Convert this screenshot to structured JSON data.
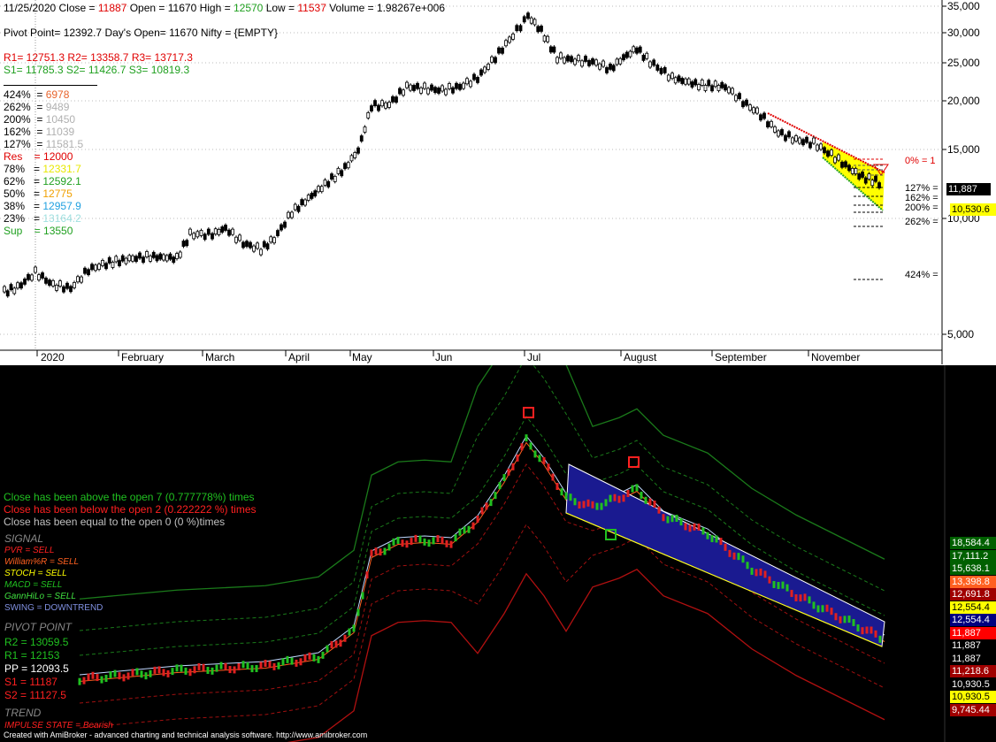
{
  "header": {
    "date": "11/25/2020",
    "close_label": "Close =",
    "close_value": "11887",
    "open_label": "Open =",
    "open_value": "11670",
    "high_label": "High =",
    "high_value": "12570",
    "low_label": "Low =",
    "low_value": "11537",
    "volume_text": "Volume = 1.98267e+006",
    "pivot_text": "Pivot Point= 12392.7",
    "days_open_text": "Day's Open= 11670",
    "nifty_text": "Nifty = {EMPTY}",
    "r1": "R1= 12751.3",
    "r2": "R2= 13358.7",
    "r3": "R3= 13717.3",
    "s1": "S1= 11785.3",
    "s2": "S2= 11426.7",
    "s3": "S3= 10819.3"
  },
  "fib_rows": [
    {
      "label": "424%  = ",
      "value": "6978",
      "color": "#e8642c"
    },
    {
      "label": "262%  = ",
      "value": "9489",
      "color": "#b0b0b0"
    },
    {
      "label": "200%  = ",
      "value": "10450",
      "color": "#b0b0b0"
    },
    {
      "label": "162%  = ",
      "value": "11039",
      "color": "#b0b0b0"
    },
    {
      "label": "127%  = ",
      "value": "11581.5",
      "color": "#b0b0b0"
    },
    {
      "label": "Res    = ",
      "value": "12000",
      "color": "#e00000",
      "labelcolor": "#e00000"
    },
    {
      "label": "78%   = ",
      "value": "12331.7",
      "color": "#e8e800"
    },
    {
      "label": "62%   = ",
      "value": "12592.1",
      "color": "#20a020"
    },
    {
      "label": "50%   = ",
      "value": "12775",
      "color": "#f0a000"
    },
    {
      "label": "38%   = ",
      "value": "12957.9",
      "color": "#20a0e0"
    },
    {
      "label": "23%   = ",
      "value": "13164.2",
      "color": "#a0e0e0"
    },
    {
      "label": "Sup    = ",
      "value": "13550",
      "color": "#20a020",
      "labelcolor": "#20a020"
    }
  ],
  "price_axis": [
    "35,000",
    "30,000",
    "25,000",
    "20,000",
    "15,000",
    "10,000",
    "5,000"
  ],
  "months": [
    "2020",
    "February",
    "March",
    "April",
    "May",
    "Jun",
    "Jul",
    "August",
    "September",
    "November"
  ],
  "right_fib_labels": [
    "0%  = 1",
    "127%  =",
    "162%  =",
    "200%  =",
    "262%  =",
    "424%  ="
  ],
  "price_badges": [
    {
      "text": "11,887",
      "bg": "#000000",
      "fg": "#ffffff"
    },
    {
      "text": "10,530.6",
      "bg": "#ffff00",
      "fg": "#000000"
    }
  ],
  "stats": [
    {
      "text": "Close has been above the open 7 (0.777778%) times",
      "color": "#20c020"
    },
    {
      "text": "Close has been below the open 2 (0.222222 %) times",
      "color": "#ff2020"
    },
    {
      "text": "Close has been equal to the open 0 (0 %)times",
      "color": "#c0c0c0"
    }
  ],
  "signal": {
    "title": "SIGNAL",
    "rows": [
      {
        "text": "PVR = SELL",
        "color": "#ff2020"
      },
      {
        "text": "William%R = SELL",
        "color": "#ff6020"
      },
      {
        "text": "STOCH = SELL",
        "color": "#ffff00"
      },
      {
        "text": "MACD = SELL",
        "color": "#20c020"
      },
      {
        "text": "GannHiLo = SELL",
        "color": "#40e040",
        "italic": true
      },
      {
        "text": "SWING = DOWNTREND",
        "color": "#8090e0"
      }
    ]
  },
  "pivot": {
    "title": "PIVOT POINT",
    "rows": [
      {
        "text": "R2 = 13059.5",
        "color": "#20c020"
      },
      {
        "text": "R1 = 12153",
        "color": "#20c020"
      },
      {
        "text": "PP = 12093.5",
        "color": "#ffffff"
      },
      {
        "text": "S1 = 11187",
        "color": "#ff2020"
      },
      {
        "text": "S2 = 11127.5",
        "color": "#ff2020"
      }
    ]
  },
  "trend": {
    "title": "TREND",
    "text": "IMPULSE STATE = Bearish",
    "color": "#ff2020"
  },
  "lower_tags": [
    {
      "text": "18,584.4",
      "bg": "#006000",
      "fg": "#ffffff"
    },
    {
      "text": "17,111.2",
      "bg": "#006000",
      "fg": "#ffffff"
    },
    {
      "text": "15,638.1",
      "bg": "#006000",
      "fg": "#ffffff"
    },
    {
      "text": "13,398.8",
      "bg": "#ff6020",
      "fg": "#ffffff"
    },
    {
      "text": "12,691.8",
      "bg": "#a00000",
      "fg": "#ffffff"
    },
    {
      "text": "12,554.4",
      "bg": "#ffff00",
      "fg": "#000000"
    },
    {
      "text": "12,554.4",
      "bg": "#000080",
      "fg": "#ffffff"
    },
    {
      "text": "11,887",
      "bg": "#ff0000",
      "fg": "#ffffff"
    },
    {
      "text": "11,887",
      "bg": "#000000",
      "fg": "#ffffff"
    },
    {
      "text": "11,887",
      "bg": "#000000",
      "fg": "#ffffff"
    },
    {
      "text": "11,218.6",
      "bg": "#a00000",
      "fg": "#ffffff"
    },
    {
      "text": "10,930.5",
      "bg": "#000000",
      "fg": "#ffffff"
    },
    {
      "text": "10,930.5",
      "bg": "#ffff00",
      "fg": "#000000"
    },
    {
      "text": "9,745.44",
      "bg": "#a00000",
      "fg": "#ffffff"
    }
  ],
  "footer": "Created with AmiBroker - advanced charting and technical analysis software. http://www.amibroker.com"
}
